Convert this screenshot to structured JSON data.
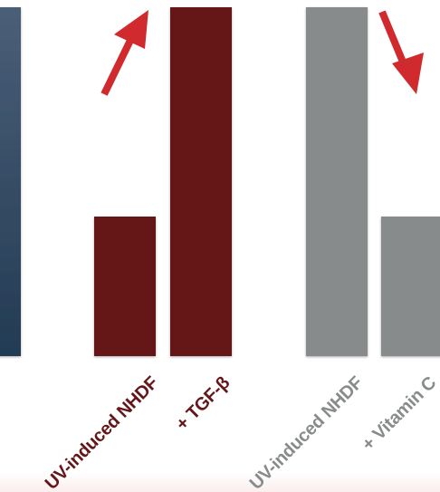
{
  "chart_data": {
    "type": "bar",
    "title": "",
    "xlabel": "",
    "ylabel": "",
    "ylim": [
      0,
      100
    ],
    "bars": [
      {
        "category": "",
        "value": 100,
        "color": "#2e4760",
        "color_top": "#4a5f77",
        "group": "cropped"
      },
      {
        "category": "UV-induced NHDF",
        "value": 40,
        "color": "#651619",
        "group": "tgf"
      },
      {
        "category": "+ TGF-β",
        "value": 100,
        "color": "#651619",
        "group": "tgf"
      },
      {
        "category": "UV-induced NHDF",
        "value": 100,
        "color": "#878b8b",
        "group": "vitc"
      },
      {
        "category": "+ Vitamin C",
        "value": 40,
        "color": "#878b8b",
        "group": "vitc"
      }
    ],
    "annotations": [
      {
        "type": "arrow-up",
        "color": "#d02a2e",
        "meaning": "increase"
      },
      {
        "type": "arrow-down",
        "color": "#d02a2e",
        "meaning": "decrease"
      }
    ],
    "label_colors": {
      "tgf": "#651619",
      "vitc": "#878b8b"
    }
  }
}
